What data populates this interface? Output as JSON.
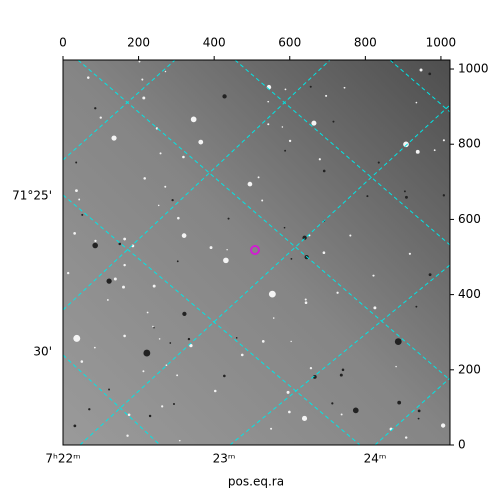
{
  "chart_data": {
    "type": "image",
    "xlabel": "pos.eq.ra",
    "xlim": [
      0,
      1024
    ],
    "ylim": [
      0,
      1024
    ],
    "xticks": [
      0,
      200,
      400,
      600,
      800,
      1000
    ],
    "yticks": [
      0,
      200,
      400,
      600,
      800,
      1000
    ],
    "ra_labels": [
      "7ʰ22ᵐ",
      "23ᵐ",
      "24ᵐ"
    ],
    "dec_labels": [
      "71°25'",
      "30'"
    ],
    "grid_color": "#00e5e5"
  }
}
